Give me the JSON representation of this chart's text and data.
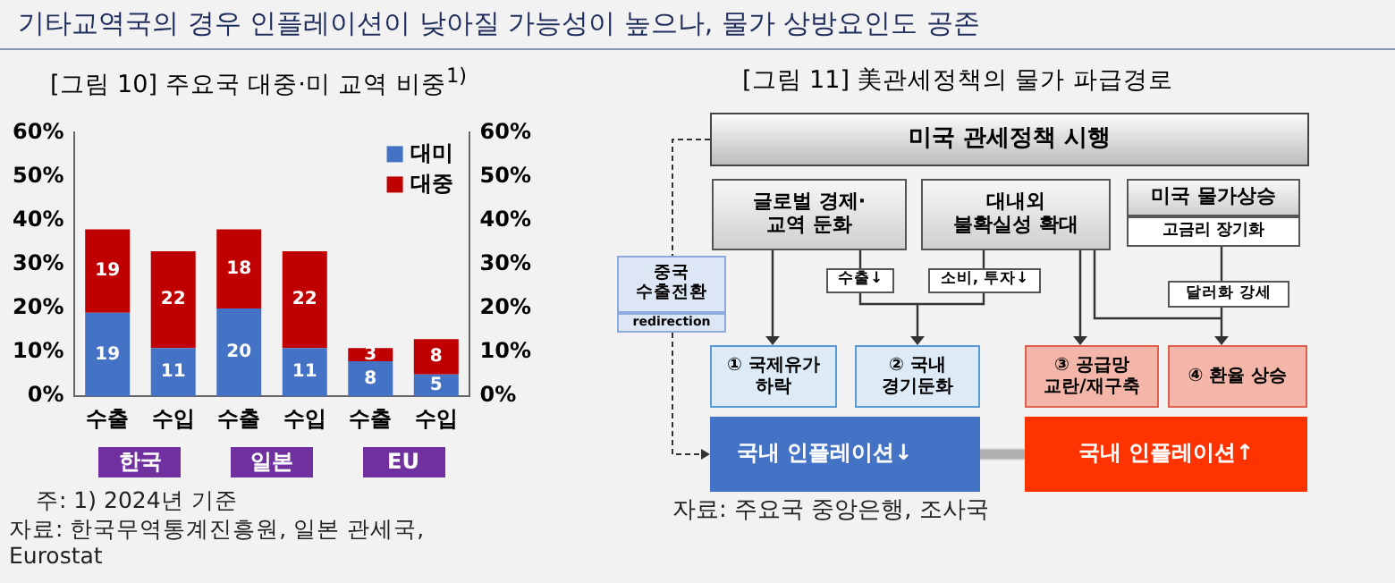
{
  "chart_data": [
    {
      "type": "bar",
      "title": "기타교역국의 경우 인플레이션이 낮아질 가능성이 높으나, 물가 상방요인도 공존",
      "subtitle": "[그림 10] 주요국 대중·미 교역 비중$^{1)}$",
      "categories": [
        "수출",
        "수입",
        "수출",
        "수입",
        "수출",
        "수입"
      ],
      "series": [
        {
          "name": "대미",
          "color": "#4472c4",
          "values": [
            19,
            11,
            20,
            11,
            8,
            5
          ]
        },
        {
          "name": "대중",
          "color": "#c00000",
          "values": [
            19,
            22,
            18,
            22,
            3,
            8
          ]
        }
      ],
      "stacked": true,
      "data_labels": true,
      "legend": "top right",
      "grid": false,
      "ylim": [
        0,
        60
      ],
      "yticks": [
        {
          "value": 0,
          "label": "0%"
        },
        {
          "value": 10,
          "label": "10%"
        },
        {
          "value": 20,
          "label": "20%"
        },
        {
          "value": 30,
          "label": "30%"
        },
        {
          "value": 40,
          "label": "40%"
        },
        {
          "value": 50,
          "label": "50%"
        },
        {
          "value": 60,
          "label": "60%"
        }
      ],
      "y2lim": [
        0,
        60
      ],
      "y2ticks": [
        {
          "value": 0,
          "label": "0%"
        },
        {
          "value": 10,
          "label": "10%"
        },
        {
          "value": 20,
          "label": "20%"
        },
        {
          "value": 30,
          "label": "30%"
        },
        {
          "value": 40,
          "label": "40%"
        },
        {
          "value": 50,
          "label": "50%"
        },
        {
          "value": 60,
          "label": "60%"
        }
      ],
      "annotations": [
        "한국",
        "일본",
        "EU",
        "주: 1) 2024년 기준",
        "자료: 한국무역통계진흥원, 일본 관세국,\nEurostat"
      ]
    },
    {
      "type": "other",
      "title": "[그림 11] 美관세정책의 물가 파급경로",
      "annotations": [
        "미국 관세정책 시행",
        "글로벌 경제·\n교역 둔화",
        "대내외\n불확실성 확대",
        "미국 물가상승",
        "고금리 장기화",
        "수출↓",
        "소비, 투자↓",
        "달러화 강세",
        "중국\n수출전환",
        "redirection",
        "① 국제유가\n하락",
        "② 국내\n경기둔화",
        "③ 공급망\n교란/재구축",
        "④ 환율 상승",
        "국내 인플레이션↓",
        "국내 인플레이션↑",
        "자료: 주요국 중앙은행, 조사국"
      ]
    }
  ]
}
